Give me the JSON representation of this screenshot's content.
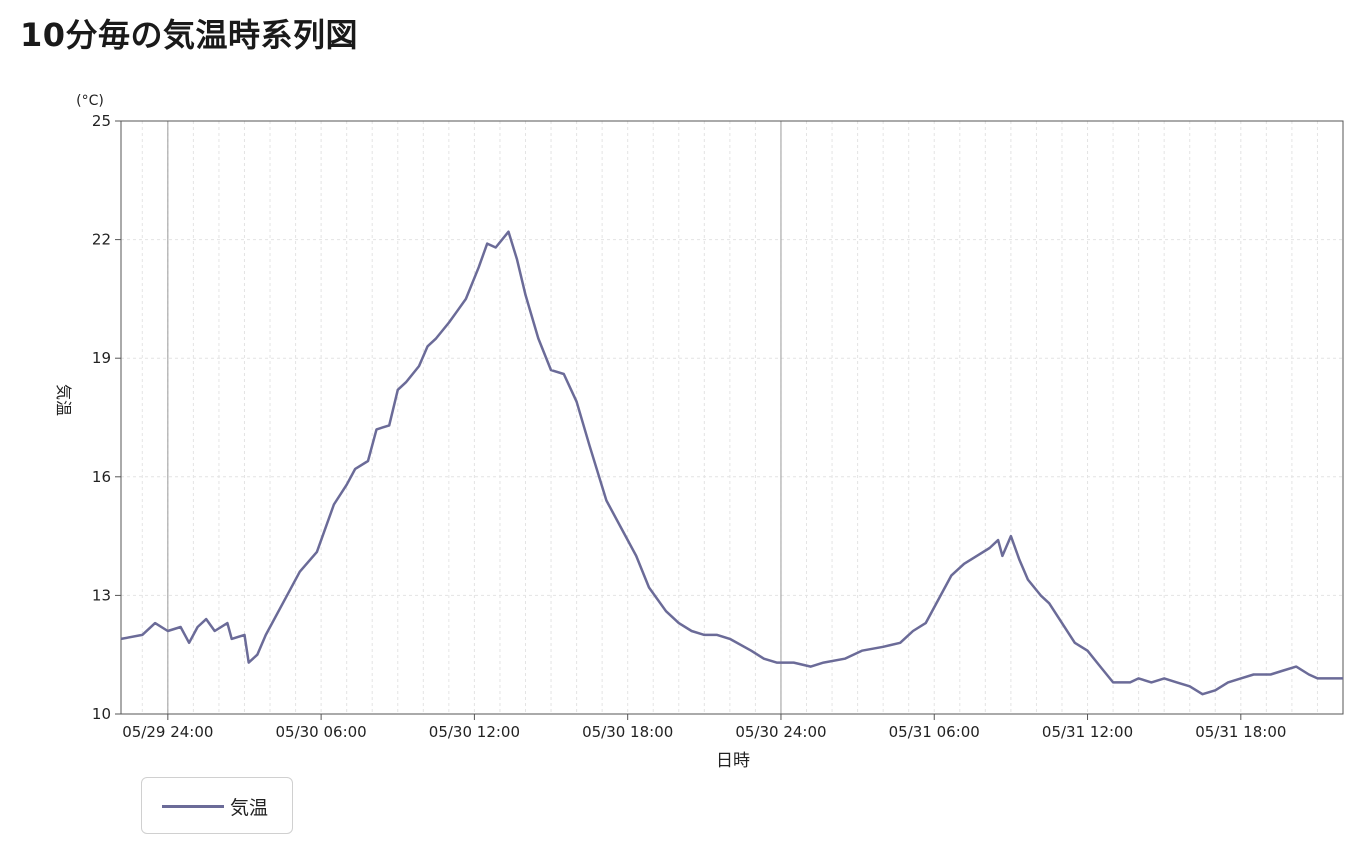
{
  "page": {
    "title": "10分毎の気温時系列図"
  },
  "chart_data": {
    "type": "line",
    "title": "10分毎の気温時系列図",
    "xlabel": "日時",
    "ylabel": "気温",
    "yunit": "(°C)",
    "ylim": [
      10,
      25
    ],
    "yticks": [
      10,
      13,
      16,
      19,
      22,
      25
    ],
    "xlim": [
      "2024-05-29 22:10",
      "2024-05-31 22:00"
    ],
    "xticks": [
      {
        "at": "2024-05-30 00:00",
        "label": "05/29 24:00"
      },
      {
        "at": "2024-05-30 06:00",
        "label": "05/30 06:00"
      },
      {
        "at": "2024-05-30 12:00",
        "label": "05/30 12:00"
      },
      {
        "at": "2024-05-30 18:00",
        "label": "05/30 18:00"
      },
      {
        "at": "2024-05-31 00:00",
        "label": "05/30 24:00"
      },
      {
        "at": "2024-05-31 06:00",
        "label": "05/31 06:00"
      },
      {
        "at": "2024-05-31 12:00",
        "label": "05/31 12:00"
      },
      {
        "at": "2024-05-31 18:00",
        "label": "05/31 18:00"
      }
    ],
    "grid": true,
    "legend_position": "bottom-left",
    "series": [
      {
        "name": "気温",
        "color": "#6b6b98",
        "points": [
          [
            "2024-05-29 22:10",
            11.9
          ],
          [
            "2024-05-29 23:00",
            12.0
          ],
          [
            "2024-05-29 23:30",
            12.3
          ],
          [
            "2024-05-30 00:00",
            12.1
          ],
          [
            "2024-05-30 00:30",
            12.2
          ],
          [
            "2024-05-30 00:50",
            11.8
          ],
          [
            "2024-05-30 01:10",
            12.2
          ],
          [
            "2024-05-30 01:30",
            12.4
          ],
          [
            "2024-05-30 01:50",
            12.1
          ],
          [
            "2024-05-30 02:20",
            12.3
          ],
          [
            "2024-05-30 02:30",
            11.9
          ],
          [
            "2024-05-30 03:00",
            12.0
          ],
          [
            "2024-05-30 03:10",
            11.3
          ],
          [
            "2024-05-30 03:30",
            11.5
          ],
          [
            "2024-05-30 03:50",
            12.0
          ],
          [
            "2024-05-30 04:30",
            12.8
          ],
          [
            "2024-05-30 05:10",
            13.6
          ],
          [
            "2024-05-30 05:50",
            14.1
          ],
          [
            "2024-05-30 06:30",
            15.3
          ],
          [
            "2024-05-30 07:00",
            15.8
          ],
          [
            "2024-05-30 07:20",
            16.2
          ],
          [
            "2024-05-30 07:50",
            16.4
          ],
          [
            "2024-05-30 08:10",
            17.2
          ],
          [
            "2024-05-30 08:40",
            17.3
          ],
          [
            "2024-05-30 09:00",
            18.2
          ],
          [
            "2024-05-30 09:20",
            18.4
          ],
          [
            "2024-05-30 09:50",
            18.8
          ],
          [
            "2024-05-30 10:10",
            19.3
          ],
          [
            "2024-05-30 10:30",
            19.5
          ],
          [
            "2024-05-30 11:00",
            19.9
          ],
          [
            "2024-05-30 11:20",
            20.2
          ],
          [
            "2024-05-30 11:40",
            20.5
          ],
          [
            "2024-05-30 12:10",
            21.3
          ],
          [
            "2024-05-30 12:30",
            21.9
          ],
          [
            "2024-05-30 12:50",
            21.8
          ],
          [
            "2024-05-30 13:20",
            22.2
          ],
          [
            "2024-05-30 13:40",
            21.5
          ],
          [
            "2024-05-30 14:00",
            20.6
          ],
          [
            "2024-05-30 14:30",
            19.5
          ],
          [
            "2024-05-30 15:00",
            18.7
          ],
          [
            "2024-05-30 15:30",
            18.6
          ],
          [
            "2024-05-30 16:00",
            17.9
          ],
          [
            "2024-05-30 16:30",
            16.8
          ],
          [
            "2024-05-30 17:10",
            15.4
          ],
          [
            "2024-05-30 17:50",
            14.6
          ],
          [
            "2024-05-30 18:20",
            14.0
          ],
          [
            "2024-05-30 18:50",
            13.2
          ],
          [
            "2024-05-30 19:30",
            12.6
          ],
          [
            "2024-05-30 20:00",
            12.3
          ],
          [
            "2024-05-30 20:30",
            12.1
          ],
          [
            "2024-05-30 21:00",
            12.0
          ],
          [
            "2024-05-30 21:30",
            12.0
          ],
          [
            "2024-05-30 22:00",
            11.9
          ],
          [
            "2024-05-30 22:50",
            11.6
          ],
          [
            "2024-05-30 23:20",
            11.4
          ],
          [
            "2024-05-30 23:50",
            11.3
          ],
          [
            "2024-05-31 00:30",
            11.3
          ],
          [
            "2024-05-31 01:10",
            11.2
          ],
          [
            "2024-05-31 01:40",
            11.3
          ],
          [
            "2024-05-31 02:30",
            11.4
          ],
          [
            "2024-05-31 03:10",
            11.6
          ],
          [
            "2024-05-31 04:00",
            11.7
          ],
          [
            "2024-05-31 04:40",
            11.8
          ],
          [
            "2024-05-31 05:10",
            12.1
          ],
          [
            "2024-05-31 05:40",
            12.3
          ],
          [
            "2024-05-31 06:10",
            12.9
          ],
          [
            "2024-05-31 06:40",
            13.5
          ],
          [
            "2024-05-31 07:10",
            13.8
          ],
          [
            "2024-05-31 07:40",
            14.0
          ],
          [
            "2024-05-31 08:10",
            14.2
          ],
          [
            "2024-05-31 08:30",
            14.4
          ],
          [
            "2024-05-31 08:40",
            14.0
          ],
          [
            "2024-05-31 09:00",
            14.5
          ],
          [
            "2024-05-31 09:20",
            13.9
          ],
          [
            "2024-05-31 09:40",
            13.4
          ],
          [
            "2024-05-31 10:10",
            13.0
          ],
          [
            "2024-05-31 10:30",
            12.8
          ],
          [
            "2024-05-31 11:00",
            12.3
          ],
          [
            "2024-05-31 11:30",
            11.8
          ],
          [
            "2024-05-31 12:00",
            11.6
          ],
          [
            "2024-05-31 12:30",
            11.2
          ],
          [
            "2024-05-31 13:00",
            10.8
          ],
          [
            "2024-05-31 13:40",
            10.8
          ],
          [
            "2024-05-31 14:00",
            10.9
          ],
          [
            "2024-05-31 14:30",
            10.8
          ],
          [
            "2024-05-31 15:00",
            10.9
          ],
          [
            "2024-05-31 15:30",
            10.8
          ],
          [
            "2024-05-31 16:00",
            10.7
          ],
          [
            "2024-05-31 16:30",
            10.5
          ],
          [
            "2024-05-31 17:00",
            10.6
          ],
          [
            "2024-05-31 17:30",
            10.8
          ],
          [
            "2024-05-31 18:00",
            10.9
          ],
          [
            "2024-05-31 18:30",
            11.0
          ],
          [
            "2024-05-31 19:10",
            11.0
          ],
          [
            "2024-05-31 19:40",
            11.1
          ],
          [
            "2024-05-31 20:10",
            11.2
          ],
          [
            "2024-05-31 20:40",
            11.0
          ],
          [
            "2024-05-31 21:00",
            10.9
          ],
          [
            "2024-05-31 21:30",
            10.9
          ],
          [
            "2024-05-31 22:00",
            10.9
          ]
        ]
      }
    ]
  }
}
